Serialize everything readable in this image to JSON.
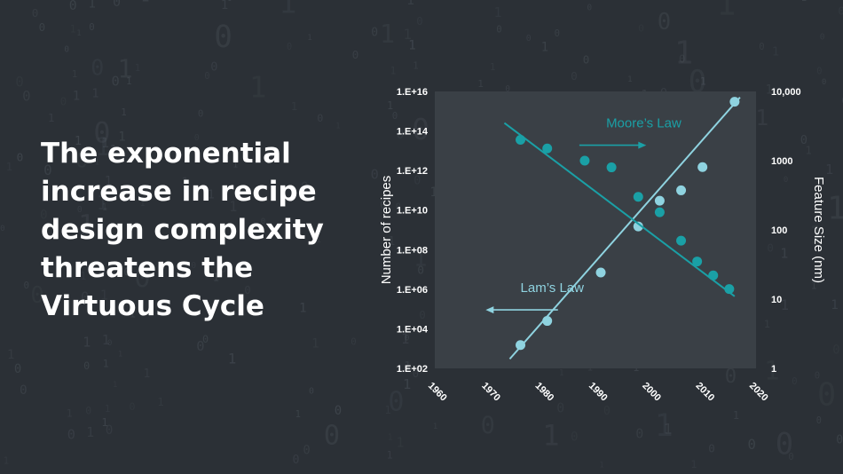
{
  "slide": {
    "headline_lines": [
      "The exponential",
      "increase in recipe",
      "design complexity",
      "threatens the",
      "Virtuous Cycle"
    ],
    "colors": {
      "background": "#2b3036",
      "plot_area": "#3a4046",
      "headline": "#ffffff",
      "lam_series": "#8fd3e0",
      "moore_series": "#1aa0a6",
      "axis_text": "#ffffff"
    }
  },
  "chart_data": {
    "type": "scatter",
    "title": "",
    "xlabel": "",
    "ylabel": "Number of recipes",
    "y2label": "Feature Size (nm)",
    "x_ticks": [
      "1960",
      "1970",
      "1980",
      "1990",
      "2000",
      "2010",
      "2020"
    ],
    "xlim": [
      1960,
      2020
    ],
    "y_scale": "log",
    "ylim": [
      100.0,
      1e+16
    ],
    "y_ticks": [
      "1.E+02",
      "1.E+04",
      "1.E+06",
      "1.E+08",
      "1.E+10",
      "1.E+12",
      "1.E+14",
      "1.E+16"
    ],
    "y2_scale": "log",
    "y2lim": [
      1,
      10000
    ],
    "y2_ticks": [
      "1",
      "10",
      "100",
      "1000",
      "10,000"
    ],
    "grid": false,
    "series": [
      {
        "name": "Lam’s Law",
        "axis": "left",
        "color": "#8fd3e0",
        "points": [
          [
            1976,
            1500.0
          ],
          [
            1981,
            25000.0
          ],
          [
            1991,
            7000000.0
          ],
          [
            1998,
            1500000000.0
          ],
          [
            2002,
            30000000000.0
          ],
          [
            2006,
            100000000000.0
          ],
          [
            2010,
            1500000000000.0
          ],
          [
            2016,
            3000000000000000.0
          ]
        ],
        "trend": [
          [
            1974,
            300.0
          ],
          [
            2017,
            5000000000000000.0
          ]
        ],
        "annotation": {
          "text": "Lam’s Law",
          "x": 1976,
          "y": 1200000.0,
          "arrow": "left",
          "arrow_from": 1983,
          "arrow_to": 1970
        }
      },
      {
        "name": "Moore’s Law",
        "axis": "right",
        "color": "#1aa0a6",
        "points": [
          [
            1976,
            2000
          ],
          [
            1981,
            1500
          ],
          [
            1988,
            1000
          ],
          [
            1993,
            800
          ],
          [
            1998,
            300
          ],
          [
            2002,
            180
          ],
          [
            2006,
            70
          ],
          [
            2009,
            35
          ],
          [
            2012,
            22
          ],
          [
            2015,
            14
          ]
        ],
        "trend": [
          [
            1973,
            3500
          ],
          [
            2016,
            11
          ]
        ],
        "annotation": {
          "text": "Moore’s Law",
          "x": 1992,
          "y": 3500,
          "arrow": "right",
          "arrow_from": 1987,
          "arrow_to": 1999
        }
      }
    ]
  }
}
